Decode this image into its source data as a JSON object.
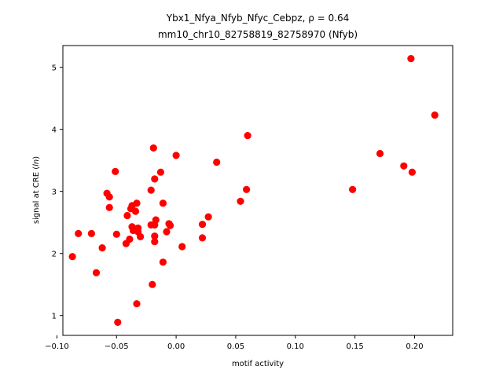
{
  "chart_data": {
    "type": "scatter",
    "title_line1": "Ybx1_Nfya_Nfyb_Nfyc_Cebpz, ρ = 0.64",
    "title_line2": "mm10_chr10_82758819_82758970 (Nfyb)",
    "xlabel": "motif activity",
    "ylabel_prefix": "signal at CRE (",
    "ylabel_italic": "ln",
    "ylabel_suffix": ")",
    "xlim": [
      -0.095,
      0.232
    ],
    "ylim": [
      0.68,
      5.35
    ],
    "xticks": [
      -0.1,
      -0.05,
      0.0,
      0.05,
      0.1,
      0.15,
      0.2
    ],
    "xtick_labels": [
      "−0.10",
      "−0.05",
      "0.00",
      "0.05",
      "0.10",
      "0.15",
      "0.20"
    ],
    "yticks": [
      1,
      2,
      3,
      4,
      5
    ],
    "ytick_labels": [
      "1",
      "2",
      "3",
      "4",
      "5"
    ],
    "grid": false,
    "marker_color": "#ff0000",
    "points": [
      {
        "x": 0.197,
        "y": 5.14
      },
      {
        "x": 0.217,
        "y": 4.23
      },
      {
        "x": 0.171,
        "y": 3.61
      },
      {
        "x": 0.191,
        "y": 3.41
      },
      {
        "x": 0.198,
        "y": 3.31
      },
      {
        "x": 0.148,
        "y": 3.03
      },
      {
        "x": 0.06,
        "y": 3.9
      },
      {
        "x": 0.034,
        "y": 3.47
      },
      {
        "x": 0.059,
        "y": 3.03
      },
      {
        "x": 0.054,
        "y": 2.84
      },
      {
        "x": 0.027,
        "y": 2.59
      },
      {
        "x": 0.022,
        "y": 2.47
      },
      {
        "x": 0.022,
        "y": 2.25
      },
      {
        "x": 0.005,
        "y": 2.11
      },
      {
        "x": 0.0,
        "y": 3.58
      },
      {
        "x": -0.019,
        "y": 3.7
      },
      {
        "x": -0.013,
        "y": 3.31
      },
      {
        "x": -0.018,
        "y": 3.2
      },
      {
        "x": -0.021,
        "y": 3.02
      },
      {
        "x": -0.011,
        "y": 2.81
      },
      {
        "x": -0.017,
        "y": 2.54
      },
      {
        "x": -0.021,
        "y": 2.46
      },
      {
        "x": -0.018,
        "y": 2.46
      },
      {
        "x": -0.006,
        "y": 2.48
      },
      {
        "x": -0.005,
        "y": 2.45
      },
      {
        "x": -0.008,
        "y": 2.35
      },
      {
        "x": -0.018,
        "y": 2.28
      },
      {
        "x": -0.018,
        "y": 2.19
      },
      {
        "x": -0.011,
        "y": 1.86
      },
      {
        "x": -0.02,
        "y": 1.5
      },
      {
        "x": -0.033,
        "y": 1.19
      },
      {
        "x": -0.049,
        "y": 0.89
      },
      {
        "x": -0.051,
        "y": 3.32
      },
      {
        "x": -0.058,
        "y": 2.97
      },
      {
        "x": -0.056,
        "y": 2.91
      },
      {
        "x": -0.056,
        "y": 2.74
      },
      {
        "x": -0.037,
        "y": 2.77
      },
      {
        "x": -0.038,
        "y": 2.72
      },
      {
        "x": -0.033,
        "y": 2.81
      },
      {
        "x": -0.034,
        "y": 2.68
      },
      {
        "x": -0.041,
        "y": 2.61
      },
      {
        "x": -0.037,
        "y": 2.43
      },
      {
        "x": -0.036,
        "y": 2.37
      },
      {
        "x": -0.032,
        "y": 2.41
      },
      {
        "x": -0.032,
        "y": 2.35
      },
      {
        "x": -0.03,
        "y": 2.27
      },
      {
        "x": -0.039,
        "y": 2.23
      },
      {
        "x": -0.042,
        "y": 2.16
      },
      {
        "x": -0.05,
        "y": 2.31
      },
      {
        "x": -0.071,
        "y": 2.32
      },
      {
        "x": -0.082,
        "y": 2.32
      },
      {
        "x": -0.062,
        "y": 2.09
      },
      {
        "x": -0.087,
        "y": 1.95
      },
      {
        "x": -0.067,
        "y": 1.69
      }
    ]
  }
}
